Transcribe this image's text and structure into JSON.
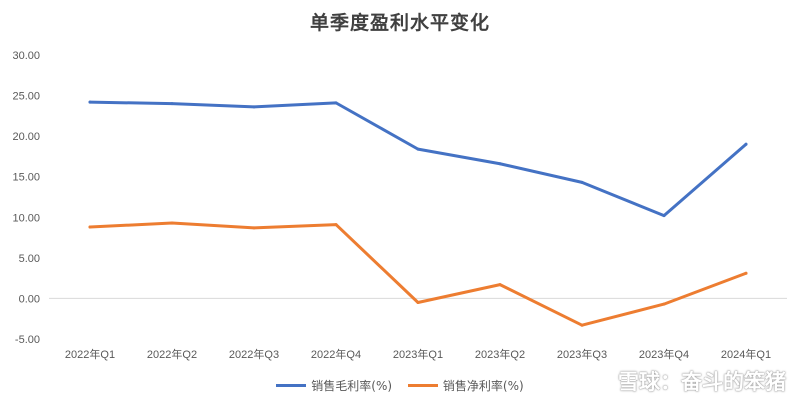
{
  "chart_data": {
    "type": "line",
    "title": "单季度盈利水平变化",
    "categories": [
      "2022年Q1",
      "2022年Q2",
      "2022年Q3",
      "2022年Q4",
      "2023年Q1",
      "2023年Q2",
      "2023年Q3",
      "2023年Q4",
      "2024年Q1"
    ],
    "series": [
      {
        "name": "销售毛利率(%)",
        "color": "#4472C4",
        "values": [
          24.2,
          24.0,
          23.6,
          24.1,
          18.4,
          16.6,
          14.3,
          10.2,
          19.0
        ]
      },
      {
        "name": "销售净利率(%)",
        "color": "#ED7D31",
        "values": [
          8.8,
          9.3,
          8.7,
          9.1,
          -0.5,
          1.7,
          -3.3,
          -0.7,
          3.1
        ]
      }
    ],
    "yticks": [
      "30.00",
      "25.00",
      "20.00",
      "15.00",
      "10.00",
      "5.00",
      "0.00",
      "-5.00"
    ],
    "ylim": [
      -5,
      30
    ],
    "grid": false,
    "legend": "bottom"
  },
  "watermark": "雪球：奋斗的笨猪"
}
